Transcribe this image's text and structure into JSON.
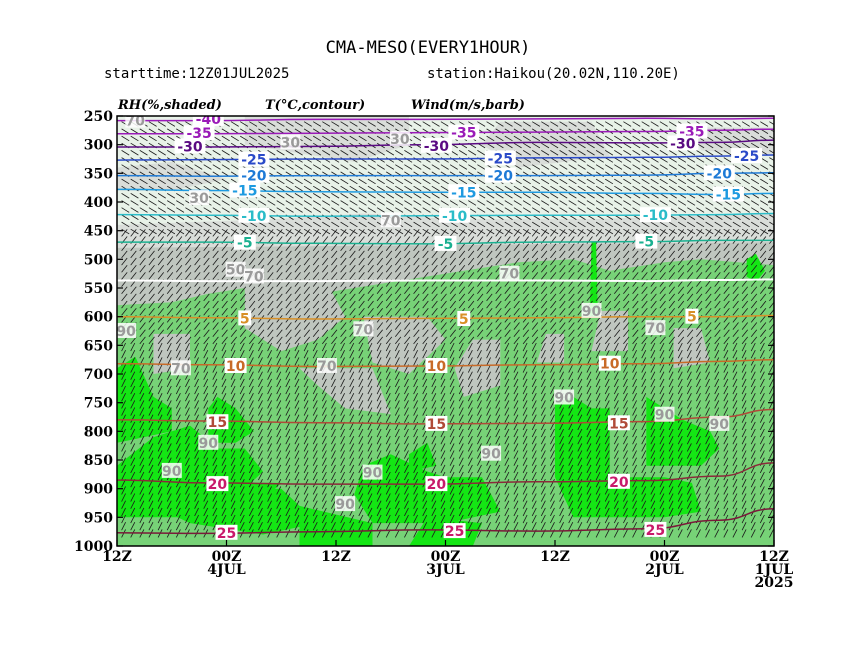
{
  "header": {
    "title": "CMA-MESO(EVERY1HOUR)",
    "starttime": "starttime:12Z01JUL2025",
    "station": "station:Haikou(20.02N,110.20E)",
    "legend_rh": "RH(%,shaded)",
    "legend_t": "T(°C,contour)",
    "legend_wind": "Wind(m/s,barb)"
  },
  "chart_data": {
    "type": "time-height cross section",
    "y_axis": {
      "ticks": [
        250,
        300,
        350,
        400,
        450,
        500,
        550,
        600,
        650,
        700,
        750,
        800,
        850,
        900,
        950,
        1000
      ],
      "range": [
        250,
        1000
      ],
      "reversed": true
    },
    "x_axis": {
      "ticks": [
        {
          "hours": 72,
          "l1": "12Z",
          "l2": "",
          "l3": ""
        },
        {
          "hours": 60,
          "l1": "00Z",
          "l2": "4JUL",
          "l3": ""
        },
        {
          "hours": 48,
          "l1": "12Z",
          "l2": "",
          "l3": ""
        },
        {
          "hours": 36,
          "l1": "00Z",
          "l2": "3JUL",
          "l3": ""
        },
        {
          "hours": 24,
          "l1": "12Z",
          "l2": "",
          "l3": ""
        },
        {
          "hours": 12,
          "l1": "00Z",
          "l2": "2JUL",
          "l3": ""
        },
        {
          "hours": 0,
          "l1": "12Z",
          "l2": "1JUL",
          "l3": "2025"
        }
      ],
      "range": [
        72,
        0
      ]
    },
    "rh_colors": {
      "lt30": "#ffffff",
      "30_50": "#e8f2e8",
      "50_70": "#d9ddd9",
      "70_90": "#bfc6bf",
      "90_95": "#77d277",
      "gt95": "#14e614"
    },
    "temperature_contours": [
      {
        "value": -40,
        "label": "-40",
        "color": "#9a1ab8",
        "p": [
          258,
          258,
          256,
          256,
          255,
          254,
          255,
          254
        ]
      },
      {
        "value": -35,
        "label": "-35",
        "color": "#9a1ab8",
        "p": [
          281,
          281,
          280,
          279,
          278,
          277,
          275,
          273
        ]
      },
      {
        "value": -30,
        "label": "-30",
        "color": "#5a0a82",
        "p": [
          304,
          304,
          303,
          300,
          296,
          297,
          296,
          292
        ]
      },
      {
        "value": -25,
        "label": "-25",
        "color": "#2a4ac8",
        "p": [
          327,
          326,
          325,
          325,
          323,
          322,
          320,
          318
        ]
      },
      {
        "value": -20,
        "label": "-20",
        "color": "#1e7ad6",
        "p": [
          354,
          355,
          354,
          354,
          354,
          353,
          350,
          349
        ]
      },
      {
        "value": -15,
        "label": "-15",
        "color": "#1e9ae0",
        "p": [
          378,
          380,
          382,
          383,
          383,
          385,
          387,
          385
        ]
      },
      {
        "value": -10,
        "label": "-10",
        "color": "#2abcc8",
        "p": [
          422,
          423,
          425,
          424,
          423,
          423,
          422,
          420
        ]
      },
      {
        "value": -5,
        "label": "-5",
        "color": "#1ab090",
        "p": [
          470,
          470,
          472,
          473,
          470,
          469,
          467,
          467
        ]
      },
      {
        "value": 0,
        "label": "",
        "color": "#ffffff",
        "p": [
          537,
          538,
          538,
          537,
          537,
          538,
          536,
          535
        ]
      },
      {
        "value": 5,
        "label": "5",
        "color": "#d89028",
        "p": [
          600,
          602,
          604,
          603,
          602,
          600,
          600,
          598
        ]
      },
      {
        "value": 10,
        "label": "10",
        "color": "#c86a28",
        "p": [
          682,
          684,
          687,
          686,
          684,
          682,
          678,
          675
        ]
      },
      {
        "value": 15,
        "label": "15",
        "color": "#b04a38",
        "p": [
          780,
          782,
          785,
          787,
          786,
          783,
          775,
          762
        ]
      },
      {
        "value": 20,
        "label": "20",
        "color": "#8a2a3a",
        "p": [
          885,
          890,
          892,
          892,
          888,
          886,
          878,
          855
        ]
      },
      {
        "value": 25,
        "label": "25",
        "color": "#7a1a3a",
        "p": [
          977,
          978,
          975,
          972,
          974,
          970,
          955,
          935
        ]
      }
    ],
    "temperature_label_values": [
      {
        "text": "-40",
        "h": 62,
        "p": 255,
        "color": "#9a1ab8"
      },
      {
        "text": "-35",
        "h": 63,
        "p": 280,
        "color": "#9a1ab8"
      },
      {
        "text": "-35",
        "h": 34,
        "p": 279,
        "color": "#9a1ab8"
      },
      {
        "text": "-35",
        "h": 9,
        "p": 277,
        "color": "#9a1ab8"
      },
      {
        "text": "-30",
        "h": 64,
        "p": 303,
        "color": "#5a0a82"
      },
      {
        "text": "-30",
        "h": 37,
        "p": 302,
        "color": "#5a0a82"
      },
      {
        "text": "-30",
        "h": 10,
        "p": 298,
        "color": "#5a0a82"
      },
      {
        "text": "-25",
        "h": 57,
        "p": 326,
        "color": "#2a4ac8"
      },
      {
        "text": "-25",
        "h": 30,
        "p": 324,
        "color": "#2a4ac8"
      },
      {
        "text": "-25",
        "h": 3,
        "p": 320,
        "color": "#2a4ac8"
      },
      {
        "text": "-20",
        "h": 57,
        "p": 354,
        "color": "#1e7ad6"
      },
      {
        "text": "-20",
        "h": 30,
        "p": 354,
        "color": "#1e7ad6"
      },
      {
        "text": "-20",
        "h": 6,
        "p": 350,
        "color": "#1e7ad6"
      },
      {
        "text": "-15",
        "h": 58,
        "p": 380,
        "color": "#1e9ae0"
      },
      {
        "text": "-15",
        "h": 34,
        "p": 383,
        "color": "#1e9ae0"
      },
      {
        "text": "-15",
        "h": 5,
        "p": 387,
        "color": "#1e9ae0"
      },
      {
        "text": "-10",
        "h": 57,
        "p": 424,
        "color": "#2abcc8"
      },
      {
        "text": "-10",
        "h": 35,
        "p": 424,
        "color": "#2abcc8"
      },
      {
        "text": "-10",
        "h": 13,
        "p": 423,
        "color": "#2abcc8"
      },
      {
        "text": "-5",
        "h": 58,
        "p": 471,
        "color": "#1ab090"
      },
      {
        "text": "-5",
        "h": 36,
        "p": 473,
        "color": "#1ab090"
      },
      {
        "text": "-5",
        "h": 14,
        "p": 469,
        "color": "#1ab090"
      },
      {
        "text": "5",
        "h": 58,
        "p": 603,
        "color": "#d89028"
      },
      {
        "text": "5",
        "h": 34,
        "p": 604,
        "color": "#d89028"
      },
      {
        "text": "5",
        "h": 9,
        "p": 600,
        "color": "#d89028"
      },
      {
        "text": "10",
        "h": 59,
        "p": 686,
        "color": "#c86a28"
      },
      {
        "text": "10",
        "h": 37,
        "p": 686,
        "color": "#c86a28"
      },
      {
        "text": "10",
        "h": 18,
        "p": 682,
        "color": "#c86a28"
      },
      {
        "text": "15",
        "h": 61,
        "p": 784,
        "color": "#b04a38"
      },
      {
        "text": "15",
        "h": 37,
        "p": 787,
        "color": "#b04a38"
      },
      {
        "text": "15",
        "h": 17,
        "p": 786,
        "color": "#b04a38"
      },
      {
        "text": "20",
        "h": 61,
        "p": 892,
        "color": "#c81a6a"
      },
      {
        "text": "20",
        "h": 37,
        "p": 892,
        "color": "#c81a6a"
      },
      {
        "text": "20",
        "h": 17,
        "p": 888,
        "color": "#c81a6a"
      },
      {
        "text": "25",
        "h": 60,
        "p": 977,
        "color": "#c81a6a"
      },
      {
        "text": "25",
        "h": 35,
        "p": 974,
        "color": "#c81a6a"
      },
      {
        "text": "25",
        "h": 13,
        "p": 972,
        "color": "#c81a6a"
      }
    ],
    "rh_label_values": [
      {
        "text": "70",
        "h": 70,
        "p": 258
      },
      {
        "text": "30",
        "h": 53,
        "p": 296
      },
      {
        "text": "30",
        "h": 41,
        "p": 290
      },
      {
        "text": "30",
        "h": 63,
        "p": 393
      },
      {
        "text": "70",
        "h": 42,
        "p": 432
      },
      {
        "text": "50",
        "h": 59,
        "p": 518
      },
      {
        "text": "70",
        "h": 57,
        "p": 530
      },
      {
        "text": "70",
        "h": 29,
        "p": 525
      },
      {
        "text": "90",
        "h": 20,
        "p": 590
      },
      {
        "text": "70",
        "h": 45,
        "p": 622
      },
      {
        "text": "70",
        "h": 13,
        "p": 620
      },
      {
        "text": "90",
        "h": 71,
        "p": 625
      },
      {
        "text": "70",
        "h": 65,
        "p": 690
      },
      {
        "text": "70",
        "h": 49,
        "p": 686
      },
      {
        "text": "90",
        "h": 23,
        "p": 741
      },
      {
        "text": "90",
        "h": 12,
        "p": 771
      },
      {
        "text": "90",
        "h": 6,
        "p": 787
      },
      {
        "text": "90",
        "h": 62,
        "p": 820
      },
      {
        "text": "90",
        "h": 31,
        "p": 839
      },
      {
        "text": "90",
        "h": 66,
        "p": 869
      },
      {
        "text": "90",
        "h": 44,
        "p": 872
      },
      {
        "text": "90",
        "h": 47,
        "p": 927
      }
    ]
  }
}
